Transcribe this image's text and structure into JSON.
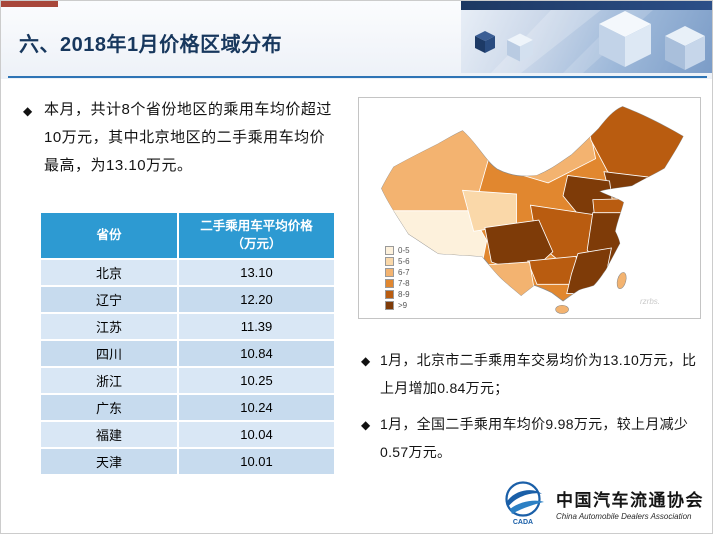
{
  "slide": {
    "title": "六、2018年1月价格区域分布",
    "bullet_symbol": "◆",
    "intro": "本月，共计8个省份地区的乘用车均价超过10万元，其中北京地区的二手乘用车均价最高，为13.10万元。"
  },
  "table": {
    "headers": [
      "省份",
      "二手乘用车平均价格（万元）"
    ],
    "rows": [
      {
        "province": "北京",
        "price": "13.10"
      },
      {
        "province": "辽宁",
        "price": "12.20"
      },
      {
        "province": "江苏",
        "price": "11.39"
      },
      {
        "province": "四川",
        "price": "10.84"
      },
      {
        "province": "浙江",
        "price": "10.25"
      },
      {
        "province": "广东",
        "price": "10.24"
      },
      {
        "province": "福建",
        "price": "10.04"
      },
      {
        "province": "天津",
        "price": "10.01"
      }
    ]
  },
  "map": {
    "legend": [
      {
        "label": "0-5",
        "color": "#FDF1DC"
      },
      {
        "label": "5-6",
        "color": "#FAD8A9"
      },
      {
        "label": "6-7",
        "color": "#F3B370"
      },
      {
        "label": "7-8",
        "color": "#E1872F"
      },
      {
        "label": "8-9",
        "color": "#B95C10"
      },
      {
        "label": ">9",
        "color": "#7E3B08"
      }
    ],
    "watermark": "rzrbs."
  },
  "notes": [
    "1月，北京市二手乘用车交易均价为13.10万元，比上月增加0.84万元；",
    "1月，全国二手乘用车均价9.98万元，较上月减少0.57万元。"
  ],
  "footer": {
    "logo_text": "CADA",
    "org_cn": "中国汽车流通协会",
    "org_en": "China Automobile Dealers Association"
  },
  "chart_data": {
    "type": "heatmap",
    "title": "2018年1月二手乘用车平均价格区域分布",
    "unit": "万元",
    "categories": [
      "北京",
      "辽宁",
      "江苏",
      "四川",
      "浙江",
      "广东",
      "福建",
      "天津"
    ],
    "values": [
      13.1,
      12.2,
      11.39,
      10.84,
      10.25,
      10.24,
      10.04,
      10.01
    ],
    "legend_bins": [
      "0-5",
      "5-6",
      "6-7",
      "7-8",
      "8-9",
      ">9"
    ],
    "legend_position": "bottom-left"
  }
}
